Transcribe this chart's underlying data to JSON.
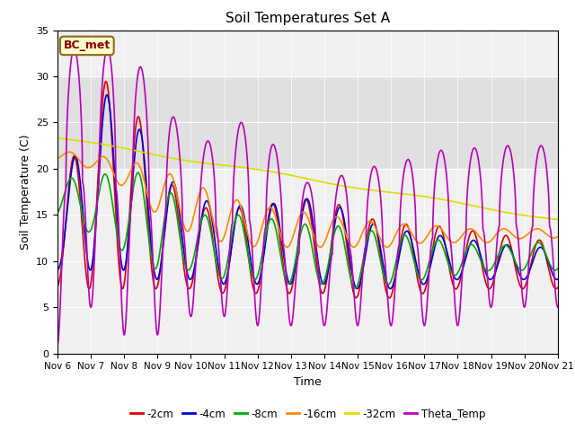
{
  "title": "Soil Temperatures Set A",
  "xlabel": "Time",
  "ylabel": "Soil Temperature (C)",
  "annotation": "BC_met",
  "ylim": [
    0,
    35
  ],
  "xlim": [
    0,
    15
  ],
  "x_tick_labels": [
    "Nov 6",
    "Nov 7",
    "Nov 8",
    "Nov 9",
    "Nov 10",
    "Nov 11",
    "Nov 12",
    "Nov 13",
    "Nov 14",
    "Nov 15",
    "Nov 16",
    "Nov 17",
    "Nov 18",
    "Nov 19",
    "Nov 20",
    "Nov 21"
  ],
  "background_color": "#ffffff",
  "plot_bg_color": "#f0f0f0",
  "shaded_region": [
    20,
    30
  ],
  "shaded_color": "#e0e0e0",
  "grid_color": "#ffffff",
  "series": {
    "-2cm": {
      "color": "#dd0000",
      "lw": 1.2
    },
    "-4cm": {
      "color": "#0000dd",
      "lw": 1.2
    },
    "-8cm": {
      "color": "#00aa00",
      "lw": 1.2
    },
    "-16cm": {
      "color": "#ff8800",
      "lw": 1.2
    },
    "-32cm": {
      "color": "#dddd00",
      "lw": 1.2
    },
    "Theta_Temp": {
      "color": "#bb00bb",
      "lw": 1.2
    }
  }
}
